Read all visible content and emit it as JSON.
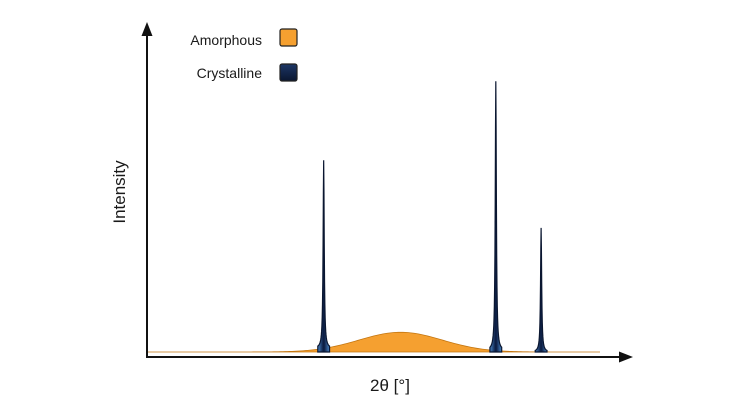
{
  "chart_data": {
    "type": "area",
    "title": "",
    "xlabel": "2θ [°]",
    "ylabel": "Intensity",
    "x_ticks_shown": false,
    "y_ticks_shown": false,
    "grid": false,
    "legend_placement": "top-left",
    "series": [
      {
        "name": "Amorphous",
        "color": "#f5a030",
        "shape": "broad hump",
        "center_x": 0.56,
        "peak_height": 0.07
      },
      {
        "name": "Crystalline",
        "color": "#0d1f45",
        "shape": "sharp peaks",
        "peaks": [
          {
            "x": 0.39,
            "height": 0.68
          },
          {
            "x": 0.77,
            "height": 0.96
          },
          {
            "x": 0.87,
            "height": 0.44
          }
        ]
      }
    ],
    "x_range": [
      0,
      1
    ],
    "y_range": [
      0,
      1
    ]
  }
}
